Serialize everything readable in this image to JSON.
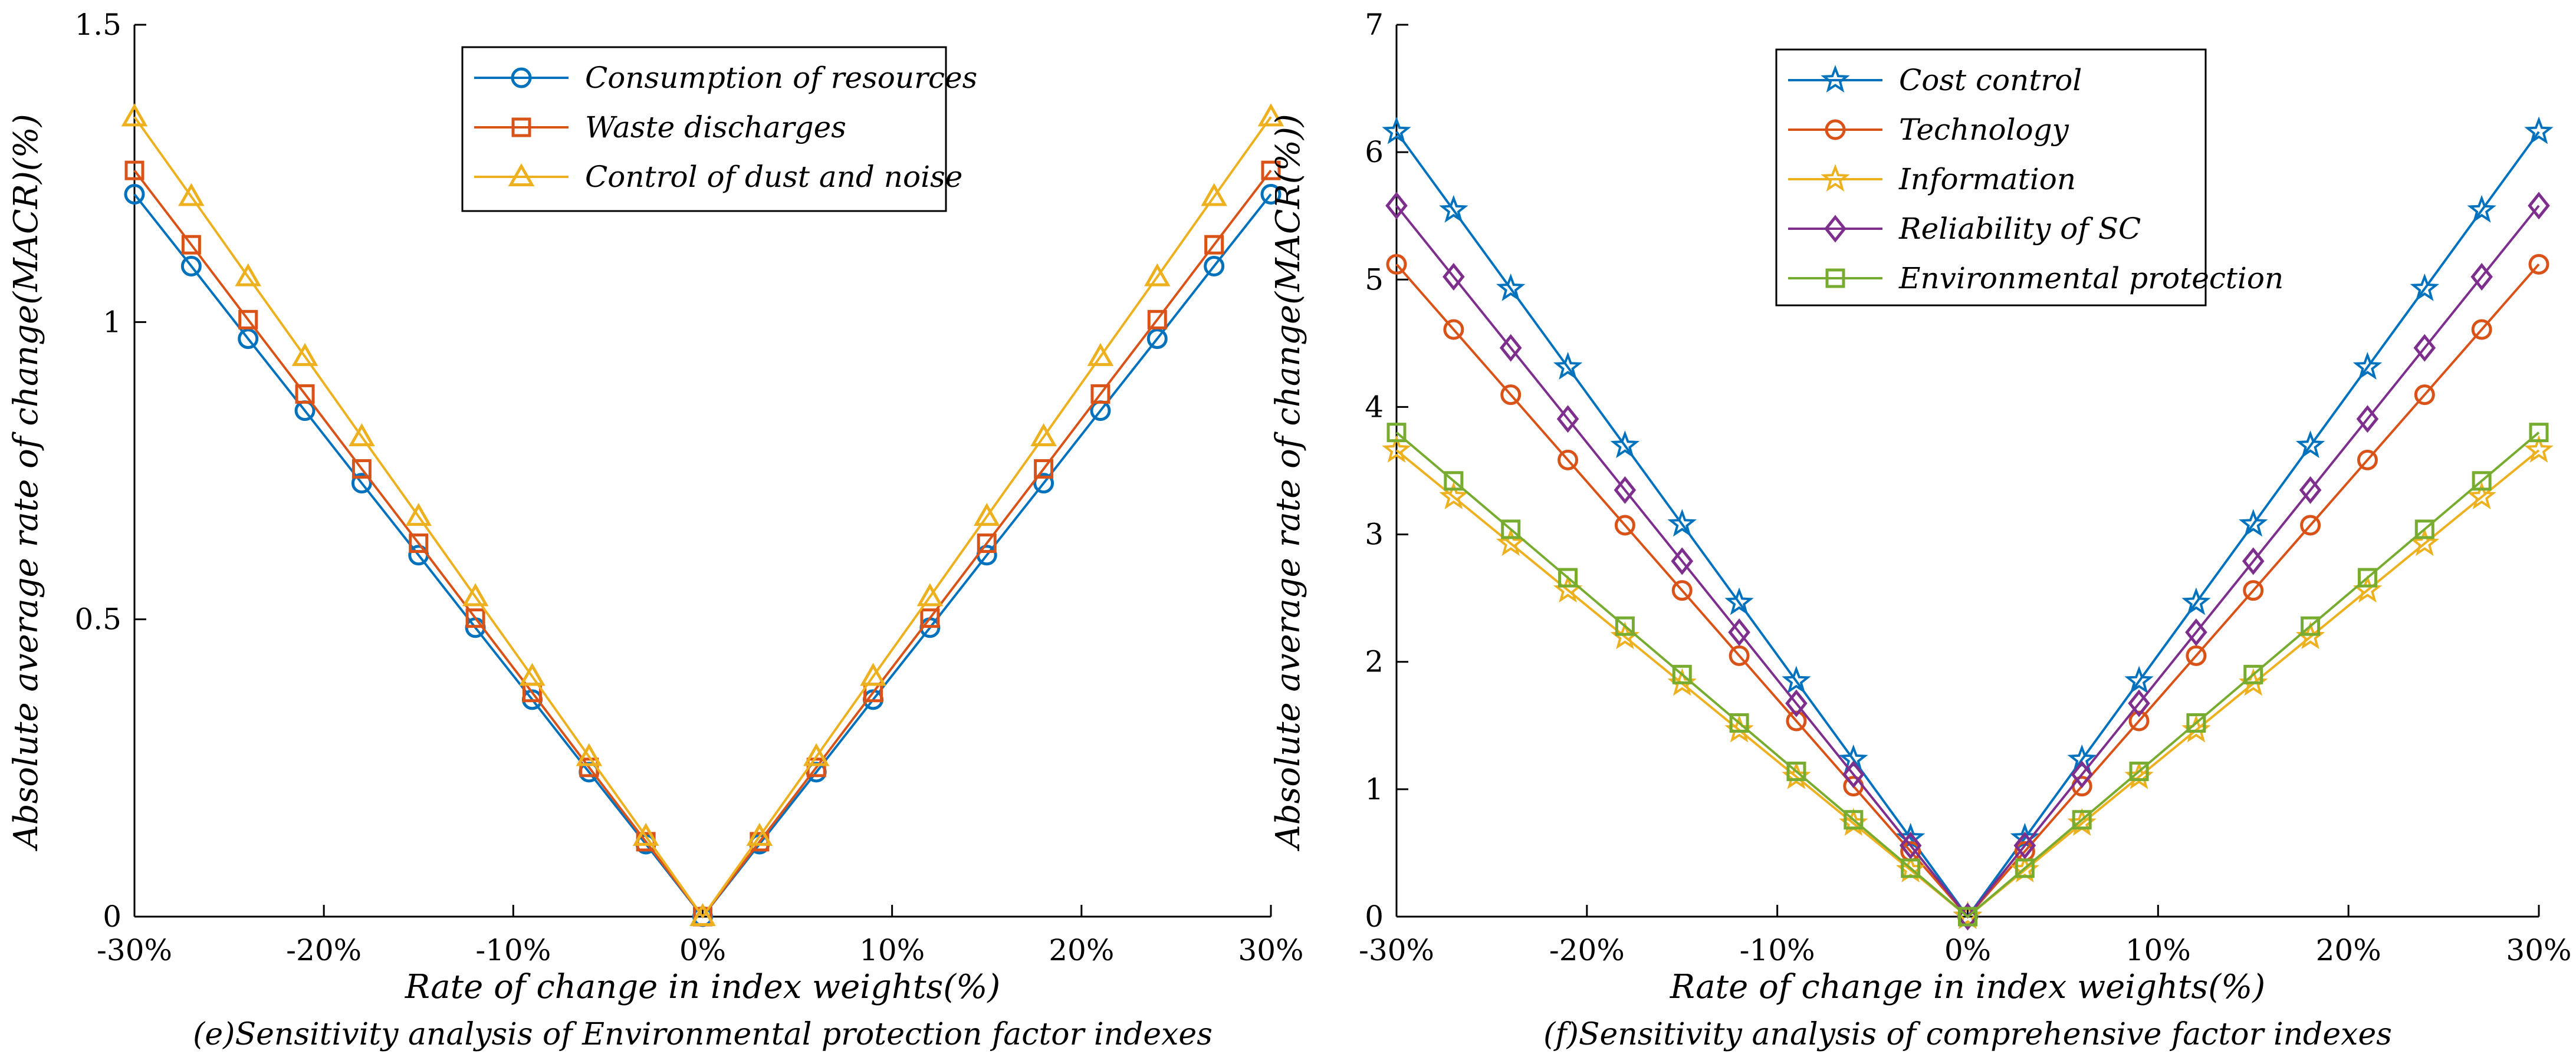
{
  "chart_data": [
    {
      "type": "line",
      "title": "",
      "caption": "(e)Sensitivity analysis of Environmental protection factor indexes",
      "xlabel": "Rate of change in index weights(%)",
      "ylabel": "Absolute average rate of change(MACR)(%)",
      "x": [
        -30,
        -27,
        -24,
        -21,
        -18,
        -15,
        -12,
        -9,
        -6,
        -3,
        0,
        3,
        6,
        9,
        12,
        15,
        18,
        21,
        24,
        27,
        30
      ],
      "xlim": [
        -30,
        30
      ],
      "ylim": [
        0,
        1.5
      ],
      "x_ticks": [
        -30,
        -20,
        -10,
        0,
        10,
        20,
        30
      ],
      "x_tick_labels": [
        "-30%",
        "-20%",
        "-10%",
        "0%",
        "10%",
        "20%",
        "30%"
      ],
      "y_ticks": [
        0,
        0.5,
        1,
        1.5
      ],
      "y_tick_labels": [
        "0",
        "0.5",
        "1",
        "1.5"
      ],
      "grid": false,
      "legend_position": "top-right",
      "series": [
        {
          "name": "Consumption of resources",
          "color": "#0072BD",
          "marker": "circle",
          "values": [
            1.215,
            1.094,
            0.972,
            0.851,
            0.729,
            0.608,
            0.486,
            0.365,
            0.243,
            0.122,
            0,
            0.122,
            0.243,
            0.365,
            0.486,
            0.608,
            0.729,
            0.851,
            0.972,
            1.094,
            1.215
          ]
        },
        {
          "name": "Waste discharges",
          "color": "#D95319",
          "marker": "square",
          "values": [
            1.255,
            1.13,
            1.004,
            0.879,
            0.753,
            0.628,
            0.502,
            0.377,
            0.251,
            0.126,
            0,
            0.126,
            0.251,
            0.377,
            0.502,
            0.628,
            0.753,
            0.879,
            1.004,
            1.13,
            1.255
          ]
        },
        {
          "name": "Control of dust and noise",
          "color": "#EDB120",
          "marker": "triangle",
          "values": [
            1.345,
            1.211,
            1.076,
            0.942,
            0.807,
            0.673,
            0.538,
            0.404,
            0.269,
            0.135,
            0,
            0.135,
            0.269,
            0.404,
            0.538,
            0.673,
            0.807,
            0.942,
            1.076,
            1.211,
            1.345
          ]
        }
      ]
    },
    {
      "type": "line",
      "title": "",
      "caption": "(f)Sensitivity analysis of comprehensive factor indexes",
      "xlabel": "Rate of change in index weights(%)",
      "ylabel": "Absolute average rate of change(MACR(%))",
      "x": [
        -30,
        -27,
        -24,
        -21,
        -18,
        -15,
        -12,
        -9,
        -6,
        -3,
        0,
        3,
        6,
        9,
        12,
        15,
        18,
        21,
        24,
        27,
        30
      ],
      "xlim": [
        -30,
        30
      ],
      "ylim": [
        0,
        7
      ],
      "x_ticks": [
        -30,
        -20,
        -10,
        0,
        10,
        20,
        30
      ],
      "x_tick_labels": [
        "-30%",
        "-20%",
        "-10%",
        "0%",
        "10%",
        "20%",
        "30%"
      ],
      "y_ticks": [
        0,
        1,
        2,
        3,
        4,
        5,
        6,
        7
      ],
      "y_tick_labels": [
        "0",
        "1",
        "2",
        "3",
        "4",
        "5",
        "6",
        "7"
      ],
      "grid": false,
      "legend_position": "top-left",
      "series": [
        {
          "name": "Cost control",
          "color": "#0072BD",
          "marker": "star",
          "values": [
            6.16,
            5.544,
            4.928,
            4.312,
            3.696,
            3.08,
            2.464,
            1.848,
            1.232,
            0.616,
            0,
            0.616,
            1.232,
            1.848,
            2.464,
            3.08,
            3.696,
            4.312,
            4.928,
            5.544,
            6.16
          ]
        },
        {
          "name": "Technology",
          "color": "#D95319",
          "marker": "circle",
          "values": [
            5.12,
            4.608,
            4.096,
            3.584,
            3.072,
            2.56,
            2.048,
            1.536,
            1.024,
            0.512,
            0,
            0.512,
            1.024,
            1.536,
            2.048,
            2.56,
            3.072,
            3.584,
            4.096,
            4.608,
            5.12
          ]
        },
        {
          "name": "Information",
          "color": "#EDB120",
          "marker": "star",
          "values": [
            3.66,
            3.294,
            2.928,
            2.562,
            2.196,
            1.83,
            1.464,
            1.098,
            0.732,
            0.366,
            0,
            0.366,
            0.732,
            1.098,
            1.464,
            1.83,
            2.196,
            2.562,
            2.928,
            3.294,
            3.66
          ]
        },
        {
          "name": "Reliability of SC",
          "color": "#7E2F8E",
          "marker": "diamond",
          "values": [
            5.58,
            5.022,
            4.464,
            3.906,
            3.348,
            2.79,
            2.232,
            1.674,
            1.116,
            0.558,
            0,
            0.558,
            1.116,
            1.674,
            2.232,
            2.79,
            3.348,
            3.906,
            4.464,
            5.022,
            5.58
          ]
        },
        {
          "name": "Environmental protection",
          "color": "#77AC30",
          "marker": "square",
          "values": [
            3.8,
            3.42,
            3.04,
            2.66,
            2.28,
            1.9,
            1.52,
            1.14,
            0.76,
            0.38,
            0,
            0.38,
            0.76,
            1.14,
            1.52,
            1.9,
            2.28,
            2.66,
            3.04,
            3.42,
            3.8
          ]
        }
      ]
    }
  ]
}
